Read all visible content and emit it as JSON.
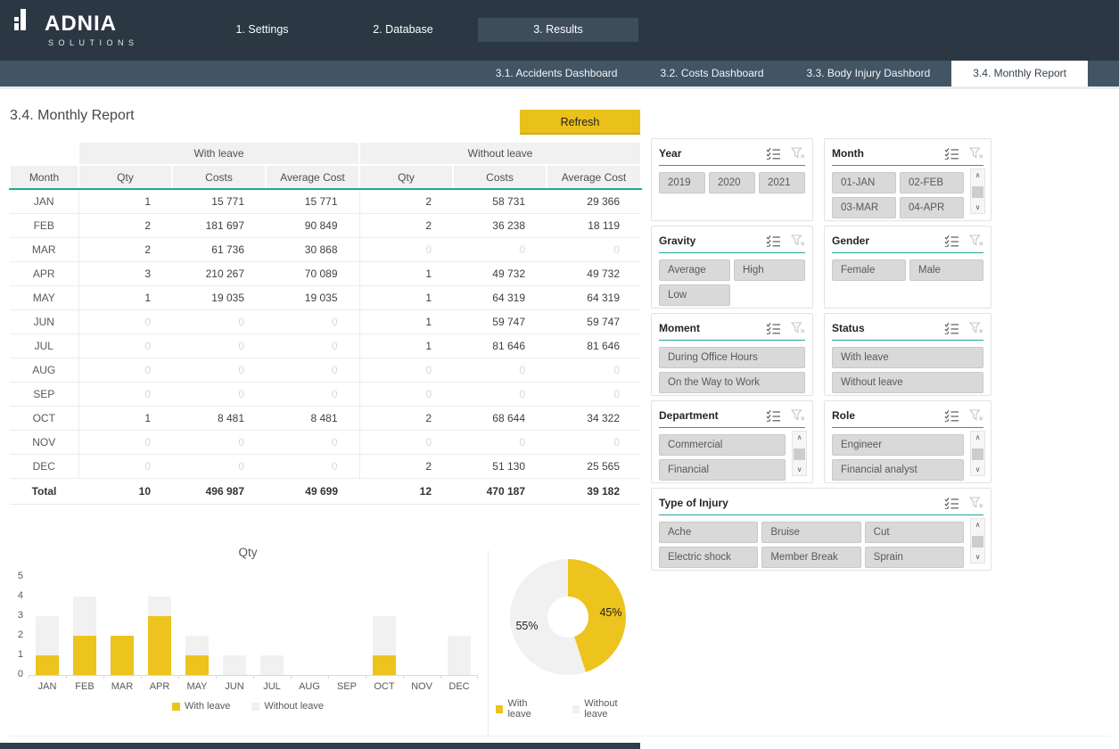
{
  "brand": {
    "name": "ADNIA",
    "sub": "SOLUTIONS"
  },
  "nav": {
    "tabs": [
      {
        "label": "1. Settings",
        "active": false
      },
      {
        "label": "2. Database",
        "active": false
      },
      {
        "label": "3. Results",
        "active": true
      }
    ],
    "subtabs": [
      {
        "label": "3.1. Accidents Dashboard",
        "active": false
      },
      {
        "label": "3.2. Costs Dashboard",
        "active": false
      },
      {
        "label": "3.3. Body Injury Dashbord",
        "active": false
      },
      {
        "label": "3.4. Monthly Report",
        "active": true
      }
    ]
  },
  "page": {
    "title": "3.4. Monthly Report",
    "refresh_label": "Refresh"
  },
  "colors": {
    "accent_yellow": "#EAC11B",
    "accent_teal": "#21A79B",
    "nav_dark": "#2B3844",
    "nav_medium": "#42556A",
    "zero_text": "#D9D9D9"
  },
  "table": {
    "group_headers": [
      "With leave",
      "Without leave"
    ],
    "columns": [
      "Month",
      "Qty",
      "Costs",
      "Average Cost",
      "Qty",
      "Costs",
      "Average Cost"
    ],
    "rows": [
      {
        "month": "JAN",
        "cells": [
          "1",
          "15 771",
          "15 771",
          "2",
          "58 731",
          "29 366"
        ]
      },
      {
        "month": "FEB",
        "cells": [
          "2",
          "181 697",
          "90 849",
          "2",
          "36 238",
          "18 119"
        ]
      },
      {
        "month": "MAR",
        "cells": [
          "2",
          "61 736",
          "30 868",
          "0",
          "0",
          "0"
        ]
      },
      {
        "month": "APR",
        "cells": [
          "3",
          "210 267",
          "70 089",
          "1",
          "49 732",
          "49 732"
        ]
      },
      {
        "month": "MAY",
        "cells": [
          "1",
          "19 035",
          "19 035",
          "1",
          "64 319",
          "64 319"
        ]
      },
      {
        "month": "JUN",
        "cells": [
          "0",
          "0",
          "0",
          "1",
          "59 747",
          "59 747"
        ]
      },
      {
        "month": "JUL",
        "cells": [
          "0",
          "0",
          "0",
          "1",
          "81 646",
          "81 646"
        ]
      },
      {
        "month": "AUG",
        "cells": [
          "0",
          "0",
          "0",
          "0",
          "0",
          "0"
        ]
      },
      {
        "month": "SEP",
        "cells": [
          "0",
          "0",
          "0",
          "0",
          "0",
          "0"
        ]
      },
      {
        "month": "OCT",
        "cells": [
          "1",
          "8 481",
          "8 481",
          "2",
          "68 644",
          "34 322"
        ]
      },
      {
        "month": "NOV",
        "cells": [
          "0",
          "0",
          "0",
          "0",
          "0",
          "0"
        ]
      },
      {
        "month": "DEC",
        "cells": [
          "0",
          "0",
          "0",
          "2",
          "51 130",
          "25 565"
        ]
      }
    ],
    "total": {
      "label": "Total",
      "cells": [
        "10",
        "496 987",
        "49 699",
        "12",
        "470 187",
        "39 182"
      ]
    }
  },
  "slicers": [
    {
      "title": "Year",
      "items": [
        "2019",
        "2020",
        "2021"
      ],
      "cols": 3,
      "scrollbar": false,
      "wide": false
    },
    {
      "title": "Month",
      "items": [
        "01-JAN",
        "02-FEB",
        "03-MAR",
        "04-APR"
      ],
      "cols": 2,
      "scrollbar": true,
      "wide": false
    },
    {
      "title": "Gravity",
      "items": [
        "Average",
        "High",
        "Low"
      ],
      "cols": 2,
      "scrollbar": false,
      "wide": false
    },
    {
      "title": "Gender",
      "items": [
        "Female",
        "Male"
      ],
      "cols": 2,
      "scrollbar": false,
      "wide": false
    },
    {
      "title": "Moment",
      "items": [
        "During Office Hours",
        "On the Way to Work"
      ],
      "cols": 1,
      "scrollbar": false,
      "wide": false
    },
    {
      "title": "Status",
      "items": [
        "With leave",
        "Without leave"
      ],
      "cols": 1,
      "scrollbar": false,
      "wide": false
    },
    {
      "title": "Department",
      "items": [
        "Commercial",
        "Financial"
      ],
      "cols": 1,
      "scrollbar": true,
      "wide": false
    },
    {
      "title": "Role",
      "items": [
        "Engineer",
        "Financial analyst"
      ],
      "cols": 1,
      "scrollbar": true,
      "wide": false
    },
    {
      "title": "Type of Injury",
      "items": [
        "Ache",
        "Bruise",
        "Cut",
        "Electric shock",
        "Member Break",
        "Sprain"
      ],
      "cols": 3,
      "scrollbar": true,
      "wide": true
    }
  ],
  "icons": {
    "multiselect": "multiselect-icon",
    "clear_filter": "clear-filter-icon",
    "scroll_up": "∧",
    "scroll_down": "∨"
  },
  "chart_data": [
    {
      "type": "bar",
      "title": "Qty",
      "stacked": true,
      "categories": [
        "JAN",
        "FEB",
        "MAR",
        "APR",
        "MAY",
        "JUN",
        "JUL",
        "AUG",
        "SEP",
        "OCT",
        "NOV",
        "DEC"
      ],
      "series": [
        {
          "name": "With leave",
          "color": "#EDC31D",
          "values": [
            1,
            2,
            2,
            3,
            1,
            0,
            0,
            0,
            0,
            1,
            0,
            0
          ]
        },
        {
          "name": "Without leave",
          "color": "#F1F1F1",
          "values": [
            2,
            2,
            0,
            1,
            1,
            1,
            1,
            0,
            0,
            2,
            0,
            2
          ]
        }
      ],
      "ylim": [
        0,
        5
      ],
      "yticks": [
        0,
        1,
        2,
        3,
        4,
        5
      ],
      "grid": false,
      "legend_position": "bottom"
    },
    {
      "type": "pie",
      "subtype": "donut",
      "slices": [
        {
          "name": "With leave",
          "value_pct": 45,
          "label": "45%",
          "color": "#EDC31D"
        },
        {
          "name": "Without leave",
          "value_pct": 55,
          "label": "55%",
          "color": "#F1F1F1"
        }
      ],
      "start_angle_deg": 0,
      "legend_position": "bottom"
    }
  ]
}
